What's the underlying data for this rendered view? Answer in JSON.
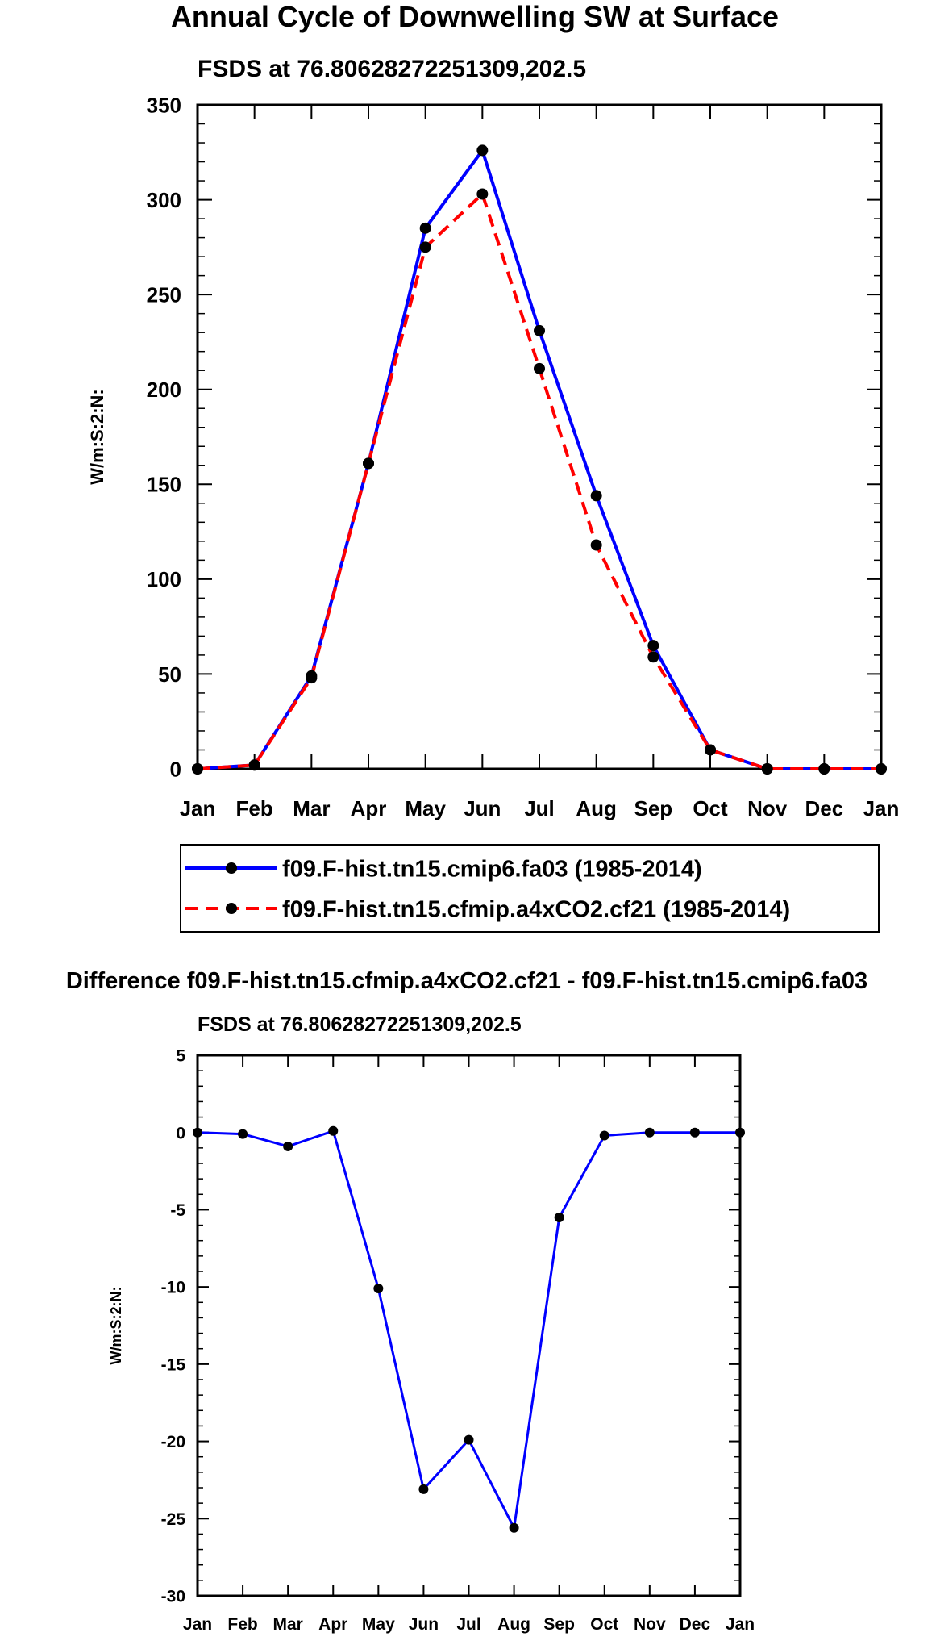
{
  "colors": {
    "series1": "#0000ff",
    "series2": "#ff0000",
    "marker": "#000000",
    "axis": "#000000"
  },
  "chart_data": [
    {
      "type": "line",
      "title": "Annual Cycle of Downwelling SW at Surface",
      "subtitle": "FSDS at 76.80628272251309,202.5",
      "xlabel": "",
      "ylabel": "W/m:S:2:N:",
      "categories": [
        "Jan",
        "Feb",
        "Mar",
        "Apr",
        "May",
        "Jun",
        "Jul",
        "Aug",
        "Sep",
        "Oct",
        "Nov",
        "Dec",
        "Jan"
      ],
      "ylim": [
        0,
        350
      ],
      "yticks": [
        0,
        50,
        100,
        150,
        200,
        250,
        300,
        350
      ],
      "ytick_labels": [
        "0",
        "50",
        "100",
        "150",
        "200",
        "250",
        "300",
        "350"
      ],
      "legend_position": "below",
      "series": [
        {
          "name": "f09.F-hist.tn15.cmip6.fa03 (1985-2014)",
          "style": "solid",
          "values": [
            0,
            2,
            49,
            161,
            285,
            326,
            231,
            144,
            65,
            10,
            0,
            0,
            0
          ]
        },
        {
          "name": "f09.F-hist.tn15.cfmip.a4xCO2.cf21 (1985-2014)",
          "style": "dashed",
          "values": [
            0,
            2,
            48,
            161,
            275,
            303,
            211,
            118,
            59,
            10,
            0,
            0,
            0
          ]
        }
      ]
    },
    {
      "type": "line",
      "title": "Difference f09.F-hist.tn15.cfmip.a4xCO2.cf21 - f09.F-hist.tn15.cmip6.fa03",
      "subtitle": "FSDS at 76.80628272251309,202.5",
      "xlabel": "",
      "ylabel": "W/m:S:2:N:",
      "categories": [
        "Jan",
        "Feb",
        "Mar",
        "Apr",
        "May",
        "Jun",
        "Jul",
        "Aug",
        "Sep",
        "Oct",
        "Nov",
        "Dec",
        "Jan"
      ],
      "ylim": [
        -30,
        5
      ],
      "yticks": [
        -30,
        -25,
        -20,
        -15,
        -10,
        -5,
        0,
        5
      ],
      "ytick_labels": [
        "-30",
        "-25",
        "-20",
        "-15",
        "-10",
        "-5",
        "0",
        "5"
      ],
      "series": [
        {
          "name": "difference",
          "style": "solid",
          "values": [
            0,
            -0.1,
            -0.9,
            0.1,
            -10.1,
            -23.1,
            -19.9,
            -25.6,
            -5.5,
            -0.2,
            0,
            0,
            0
          ]
        }
      ]
    }
  ]
}
